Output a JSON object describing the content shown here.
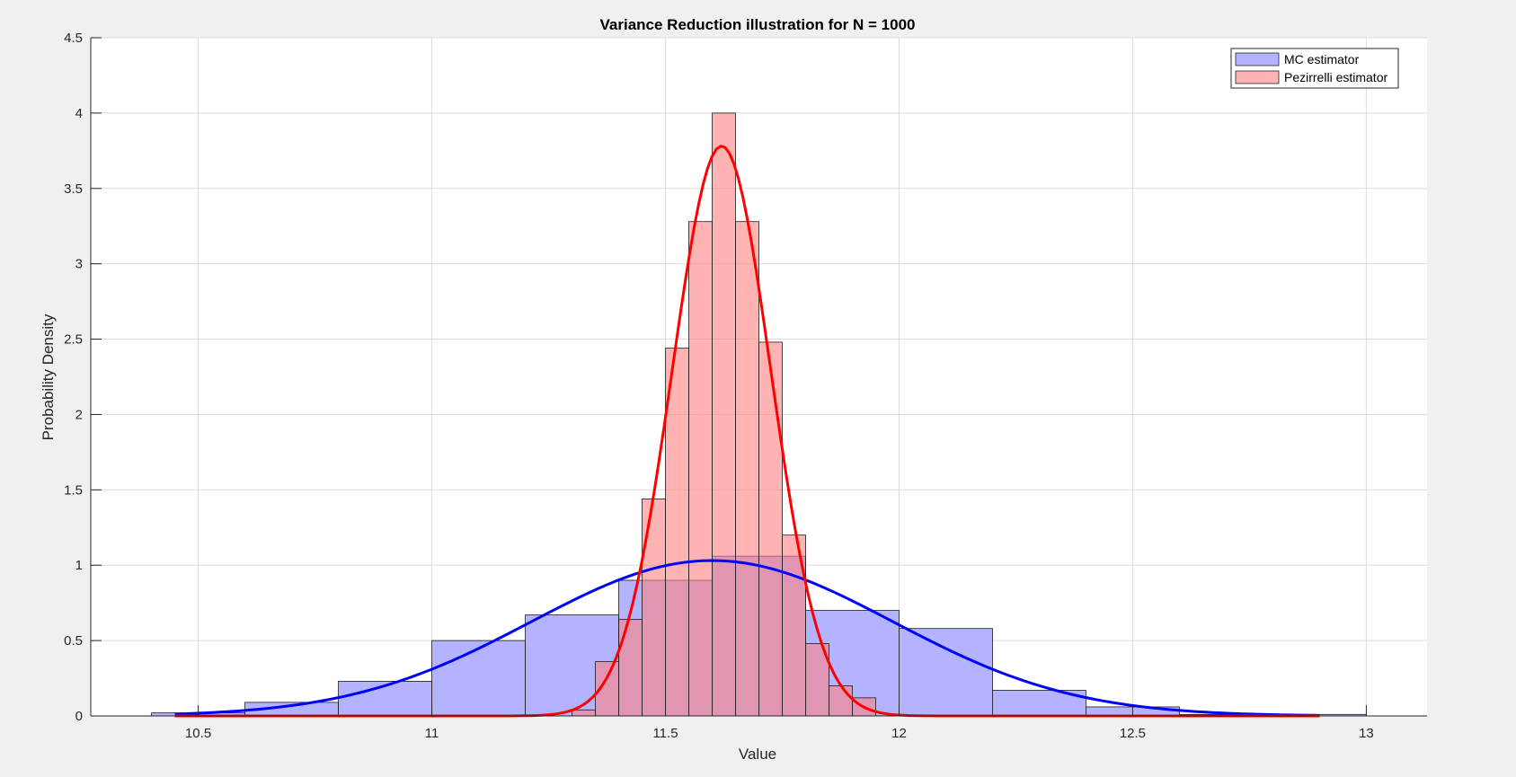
{
  "chart_data": {
    "type": "bar",
    "subtype": "histogram with fitted normal curves",
    "title": "Variance Reduction illustration for N = 1000",
    "xlabel": "Value",
    "ylabel": "Probability Density",
    "xlim": [
      10.27,
      13.13
    ],
    "ylim": [
      0,
      4.5
    ],
    "xticks": [
      10.5,
      11,
      11.5,
      12,
      12.5,
      13
    ],
    "xtick_labels": [
      "10.5",
      "11",
      "11.5",
      "12",
      "12.5",
      "13"
    ],
    "yticks": [
      0,
      0.5,
      1,
      1.5,
      2,
      2.5,
      3,
      3.5,
      4,
      4.5
    ],
    "ytick_labels": [
      "0",
      "0.5",
      "1",
      "1.5",
      "2",
      "2.5",
      "3",
      "3.5",
      "4",
      "4.5"
    ],
    "grid": true,
    "legend_position": "top-right",
    "series": [
      {
        "name": "MC estimator",
        "kind": "histogram",
        "bin_edges": [
          10.4,
          10.6,
          10.8,
          11.0,
          11.2,
          11.4,
          11.6,
          11.8,
          12.0,
          12.2,
          12.4,
          12.6,
          12.8,
          13.0
        ],
        "values": [
          0.02,
          0.09,
          0.23,
          0.5,
          0.67,
          0.9,
          1.06,
          0.7,
          0.58,
          0.17,
          0.06,
          0.01,
          0.01
        ],
        "fill": "#b3b3ff",
        "fill_opacity": 1.0
      },
      {
        "name": "Pezirrelli estimator",
        "kind": "histogram",
        "bin_edges": [
          11.3,
          11.35,
          11.4,
          11.45,
          11.5,
          11.55,
          11.6,
          11.65,
          11.7,
          11.75,
          11.8,
          11.85,
          11.9,
          11.95
        ],
        "values": [
          0.04,
          0.36,
          0.64,
          1.44,
          2.44,
          3.28,
          4.0,
          3.28,
          2.48,
          1.2,
          0.48,
          0.2,
          0.12
        ],
        "fill": "#ff8080",
        "fill_opacity": 0.6
      },
      {
        "name": "MC fit",
        "kind": "line",
        "mean": 11.6,
        "sd": 0.387,
        "x_range": [
          10.45,
          12.9
        ],
        "color": "#0000ff"
      },
      {
        "name": "Pezirrelli fit",
        "kind": "line",
        "mean": 11.62,
        "sd": 0.1055,
        "x_range": [
          10.45,
          12.9
        ],
        "color": "#ff0000"
      }
    ],
    "legend": [
      {
        "label": "MC estimator",
        "color": "#b3b3ff"
      },
      {
        "label": "Pezirrelli estimator",
        "color": "#ffb3b3"
      }
    ]
  }
}
